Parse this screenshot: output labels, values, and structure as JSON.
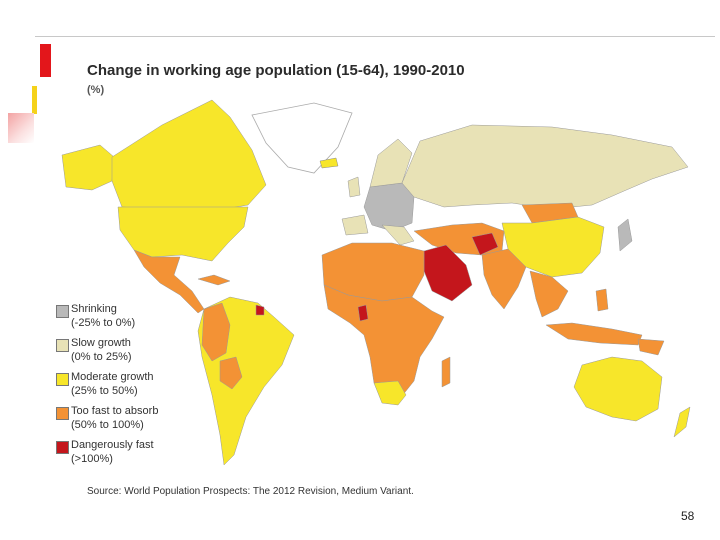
{
  "title": "Change in working age population (15-64), 1990-2010",
  "subtitle": "(%)",
  "legend": [
    {
      "label": "Shrinking",
      "range": "(-25% to 0%)",
      "color": "#b9b9b9"
    },
    {
      "label": "Slow growth",
      "range": "(0% to 25%)",
      "color": "#e8e2b6"
    },
    {
      "label": "Moderate growth",
      "range": "(25% to 50%)",
      "color": "#f7e62a"
    },
    {
      "label": "Too fast to absorb",
      "range": "(50% to 100%)",
      "color": "#f39235"
    },
    {
      "label": "Dangerously fast",
      "range": "(>100%)",
      "color": "#c4161c"
    }
  ],
  "source": "Source: World Population Prospects: The 2012 Revision, Medium Variant.",
  "page_number": "58"
}
